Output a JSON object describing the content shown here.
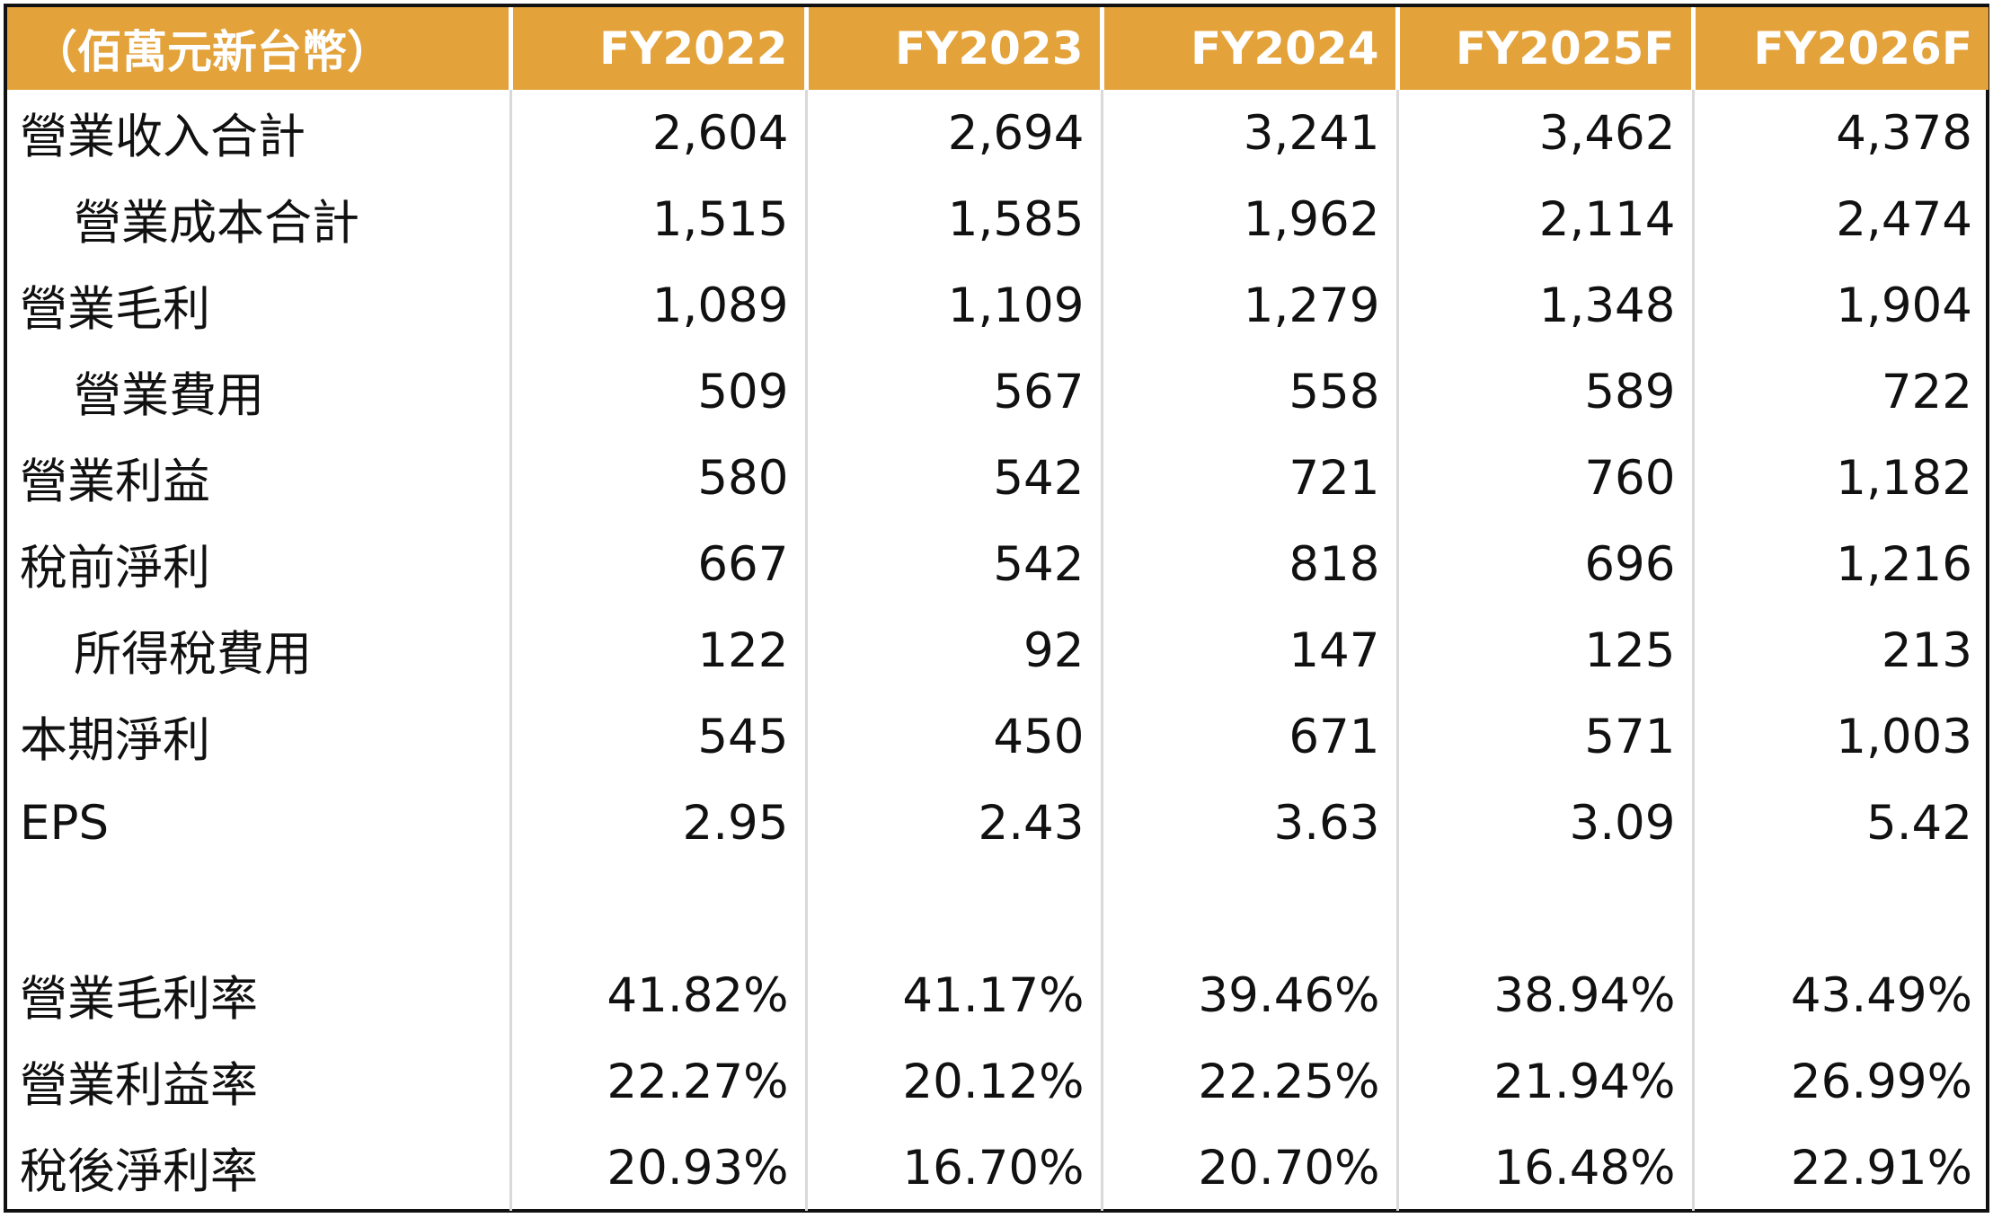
{
  "table": {
    "header": [
      "（佰萬元新台幣）",
      "FY2022",
      "FY2023",
      "FY2024",
      "FY2025F",
      "FY2026F"
    ],
    "rows": [
      {
        "label": "營業收入合計",
        "indent": false,
        "values": [
          "2,604",
          "2,694",
          "3,241",
          "3,462",
          "4,378"
        ]
      },
      {
        "label": "營業成本合計",
        "indent": true,
        "values": [
          "1,515",
          "1,585",
          "1,962",
          "2,114",
          "2,474"
        ]
      },
      {
        "label": "營業毛利",
        "indent": false,
        "values": [
          "1,089",
          "1,109",
          "1,279",
          "1,348",
          "1,904"
        ]
      },
      {
        "label": "營業費用",
        "indent": true,
        "values": [
          "509",
          "567",
          "558",
          "589",
          "722"
        ]
      },
      {
        "label": "營業利益",
        "indent": false,
        "values": [
          "580",
          "542",
          "721",
          "760",
          "1,182"
        ]
      },
      {
        "label": "稅前淨利",
        "indent": false,
        "values": [
          "667",
          "542",
          "818",
          "696",
          "1,216"
        ]
      },
      {
        "label": "所得稅費用",
        "indent": true,
        "values": [
          "122",
          "92",
          "147",
          "125",
          "213"
        ]
      },
      {
        "label": "本期淨利",
        "indent": false,
        "values": [
          "545",
          "450",
          "671",
          "571",
          "1,003"
        ]
      },
      {
        "label": "EPS",
        "indent": false,
        "values": [
          "2.95",
          "2.43",
          "3.63",
          "3.09",
          "5.42"
        ]
      },
      {
        "label": "",
        "indent": false,
        "spacer": true,
        "values": [
          "",
          "",
          "",
          "",
          ""
        ]
      },
      {
        "label": "營業毛利率",
        "indent": false,
        "values": [
          "41.82%",
          "41.17%",
          "39.46%",
          "38.94%",
          "43.49%"
        ]
      },
      {
        "label": "營業利益率",
        "indent": false,
        "values": [
          "22.27%",
          "20.12%",
          "22.25%",
          "21.94%",
          "26.99%"
        ]
      },
      {
        "label": "稅後淨利率",
        "indent": false,
        "values": [
          "20.93%",
          "16.70%",
          "20.70%",
          "16.48%",
          "22.91%"
        ]
      }
    ]
  },
  "colors": {
    "header_bg": "#E3A23A",
    "header_text": "#FFFFFF",
    "body_text": "#111111",
    "border": "#111111"
  }
}
